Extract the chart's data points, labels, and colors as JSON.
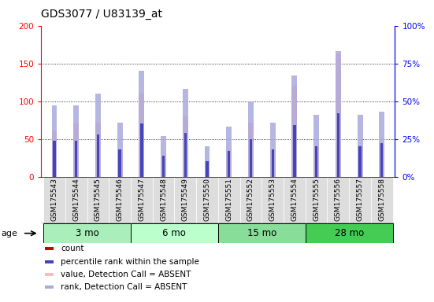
{
  "title": "GDS3077 / U83139_at",
  "samples": [
    "GSM175543",
    "GSM175544",
    "GSM175545",
    "GSM175546",
    "GSM175547",
    "GSM175548",
    "GSM175549",
    "GSM175550",
    "GSM175551",
    "GSM175552",
    "GSM175553",
    "GSM175554",
    "GSM175555",
    "GSM175556",
    "GSM175557",
    "GSM175558"
  ],
  "value_pink": [
    60,
    70,
    72,
    36,
    110,
    27,
    80,
    22,
    36,
    72,
    36,
    120,
    41,
    163,
    41,
    43
  ],
  "rank_blue_absent": [
    47,
    47,
    55,
    36,
    70,
    27,
    58,
    20,
    33,
    50,
    36,
    67,
    41,
    83,
    41,
    43
  ],
  "count_red": [
    2,
    2,
    2,
    0,
    2,
    0,
    2,
    0,
    0,
    2,
    0,
    2,
    0,
    2,
    0,
    0
  ],
  "percentile_blue": [
    24,
    24,
    28,
    18,
    35,
    14,
    29,
    10,
    17,
    25,
    18,
    34,
    20,
    42,
    20,
    22
  ],
  "age_groups": [
    {
      "label": "3 mo",
      "start": 0,
      "end": 4,
      "color": "#aaeebb"
    },
    {
      "label": "6 mo",
      "start": 4,
      "end": 8,
      "color": "#bbffcc"
    },
    {
      "label": "15 mo",
      "start": 8,
      "end": 12,
      "color": "#88dd99"
    },
    {
      "label": "28 mo",
      "start": 12,
      "end": 16,
      "color": "#44cc55"
    }
  ],
  "ylim_left": [
    0,
    200
  ],
  "ylim_right": [
    0,
    100
  ],
  "yticks_left": [
    0,
    50,
    100,
    150,
    200
  ],
  "yticks_right": [
    0,
    25,
    50,
    75,
    100
  ],
  "ytick_labels_left": [
    "0",
    "50",
    "100",
    "150",
    "200"
  ],
  "ytick_labels_right": [
    "0%",
    "25%",
    "50%",
    "75%",
    "100%"
  ],
  "pink_color": "#ffbbbb",
  "red_color": "#cc0000",
  "blue_color": "#4444bb",
  "light_blue_color": "#aaaadd",
  "cell_bg": "#dddddd",
  "plot_bg": "#ffffff"
}
